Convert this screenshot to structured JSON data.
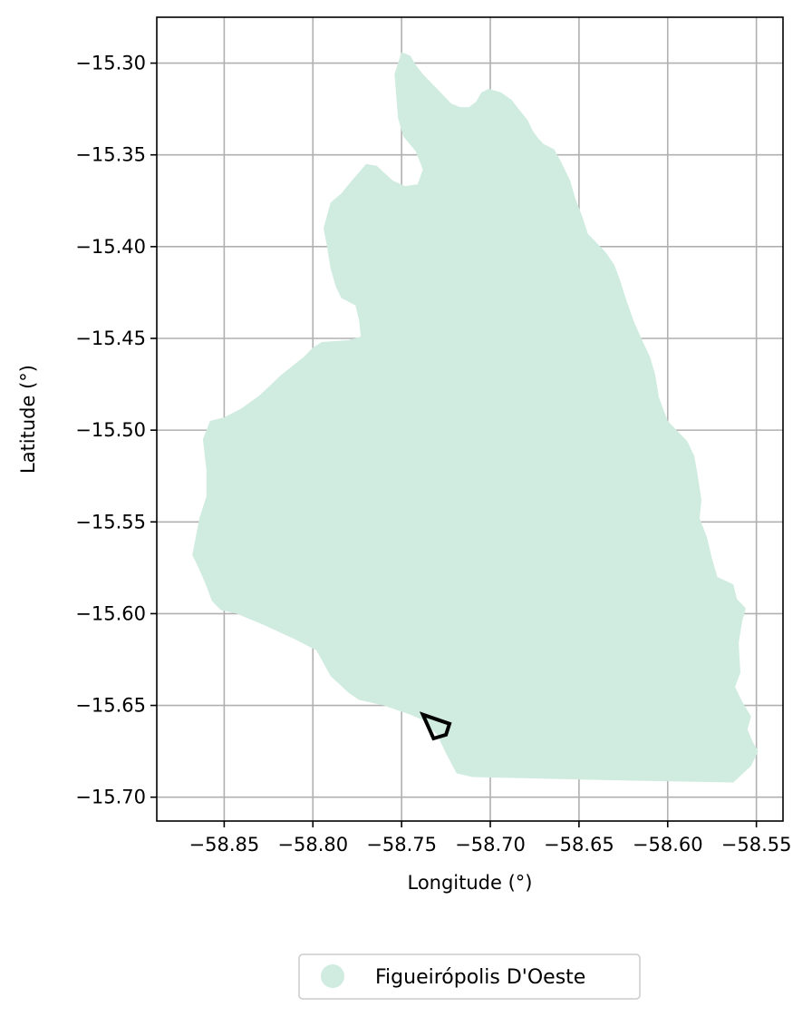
{
  "chart_data": {
    "type": "map",
    "xlabel": "Longitude (°)",
    "ylabel": "Latitude (°)",
    "xlim": [
      -58.888,
      -58.535
    ],
    "ylim": [
      -15.713,
      -15.275
    ],
    "grid": true,
    "xticks": [
      -58.85,
      -58.8,
      -58.75,
      -58.7,
      -58.65,
      -58.6,
      -58.55
    ],
    "xtick_labels": [
      "−58.85",
      "−58.80",
      "−58.75",
      "−58.70",
      "−58.65",
      "−58.60",
      "−58.55"
    ],
    "yticks": [
      -15.3,
      -15.35,
      -15.4,
      -15.45,
      -15.5,
      -15.55,
      -15.6,
      -15.65,
      -15.7
    ],
    "ytick_labels": [
      "−15.30",
      "−15.35",
      "−15.40",
      "−15.45",
      "−15.50",
      "−15.55",
      "−15.60",
      "−15.65",
      "−15.70"
    ],
    "legend": {
      "placement": "bottom-center",
      "entries": [
        "Figueirópolis D'Oeste"
      ]
    },
    "colors": {
      "region_fill": "#d0ece0",
      "outline": "#000000",
      "grid": "#b0b0b0"
    },
    "region": {
      "name": "Figueirópolis D'Oeste",
      "boundary": [
        [
          -58.75,
          -15.294
        ],
        [
          -58.745,
          -15.296
        ],
        [
          -58.742,
          -15.301
        ],
        [
          -58.738,
          -15.306
        ],
        [
          -58.73,
          -15.314
        ],
        [
          -58.726,
          -15.318
        ],
        [
          -58.722,
          -15.322
        ],
        [
          -58.717,
          -15.324
        ],
        [
          -58.712,
          -15.324
        ],
        [
          -58.708,
          -15.321
        ],
        [
          -58.705,
          -15.316
        ],
        [
          -58.701,
          -15.314
        ],
        [
          -58.694,
          -15.316
        ],
        [
          -58.688,
          -15.32
        ],
        [
          -58.684,
          -15.325
        ],
        [
          -58.679,
          -15.331
        ],
        [
          -58.676,
          -15.337
        ],
        [
          -58.673,
          -15.341
        ],
        [
          -58.67,
          -15.344
        ],
        [
          -58.664,
          -15.347
        ],
        [
          -58.66,
          -15.354
        ],
        [
          -58.655,
          -15.364
        ],
        [
          -58.652,
          -15.374
        ],
        [
          -58.648,
          -15.384
        ],
        [
          -58.645,
          -15.393
        ],
        [
          -58.64,
          -15.398
        ],
        [
          -58.635,
          -15.403
        ],
        [
          -58.63,
          -15.41
        ],
        [
          -58.627,
          -15.418
        ],
        [
          -58.623,
          -15.43
        ],
        [
          -58.619,
          -15.441
        ],
        [
          -58.614,
          -15.452
        ],
        [
          -58.61,
          -15.46
        ],
        [
          -58.607,
          -15.47
        ],
        [
          -58.605,
          -15.482
        ],
        [
          -58.6,
          -15.495
        ],
        [
          -58.593,
          -15.502
        ],
        [
          -58.589,
          -15.506
        ],
        [
          -58.585,
          -15.514
        ],
        [
          -58.583,
          -15.525
        ],
        [
          -58.581,
          -15.538
        ],
        [
          -58.582,
          -15.548
        ],
        [
          -58.578,
          -15.558
        ],
        [
          -58.575,
          -15.57
        ],
        [
          -58.572,
          -15.58
        ],
        [
          -58.563,
          -15.584
        ],
        [
          -58.561,
          -15.592
        ],
        [
          -58.556,
          -15.597
        ],
        [
          -58.558,
          -15.604
        ],
        [
          -58.56,
          -15.616
        ],
        [
          -58.559,
          -15.632
        ],
        [
          -58.562,
          -15.64
        ],
        [
          -58.558,
          -15.648
        ],
        [
          -58.553,
          -15.656
        ],
        [
          -58.555,
          -15.663
        ],
        [
          -58.552,
          -15.67
        ],
        [
          -58.549,
          -15.675
        ],
        [
          -58.553,
          -15.683
        ],
        [
          -58.563,
          -15.692
        ],
        [
          -58.62,
          -15.691
        ],
        [
          -58.665,
          -15.69
        ],
        [
          -58.71,
          -15.689
        ],
        [
          -58.719,
          -15.687
        ],
        [
          -58.725,
          -15.676
        ],
        [
          -58.73,
          -15.666
        ],
        [
          -58.738,
          -15.658
        ],
        [
          -58.745,
          -15.655
        ],
        [
          -58.76,
          -15.65
        ],
        [
          -58.774,
          -15.647
        ],
        [
          -58.78,
          -15.643
        ],
        [
          -58.79,
          -15.634
        ],
        [
          -58.798,
          -15.62
        ],
        [
          -58.81,
          -15.614
        ],
        [
          -58.828,
          -15.606
        ],
        [
          -58.843,
          -15.6
        ],
        [
          -58.852,
          -15.598
        ],
        [
          -58.857,
          -15.593
        ],
        [
          -58.86,
          -15.585
        ],
        [
          -58.864,
          -15.576
        ],
        [
          -58.868,
          -15.568
        ],
        [
          -58.866,
          -15.558
        ],
        [
          -58.864,
          -15.548
        ],
        [
          -58.86,
          -15.536
        ],
        [
          -58.86,
          -15.522
        ],
        [
          -58.862,
          -15.505
        ],
        [
          -58.858,
          -15.495
        ],
        [
          -58.85,
          -15.493
        ],
        [
          -58.84,
          -15.488
        ],
        [
          -58.83,
          -15.481
        ],
        [
          -58.818,
          -15.47
        ],
        [
          -58.805,
          -15.46
        ],
        [
          -58.8,
          -15.455
        ],
        [
          -58.795,
          -15.452
        ],
        [
          -58.78,
          -15.451
        ],
        [
          -58.773,
          -15.449
        ],
        [
          -58.774,
          -15.44
        ],
        [
          -58.776,
          -15.432
        ],
        [
          -58.784,
          -15.428
        ],
        [
          -58.787,
          -15.422
        ],
        [
          -58.79,
          -15.412
        ],
        [
          -58.792,
          -15.4
        ],
        [
          -58.794,
          -15.39
        ],
        [
          -58.79,
          -15.376
        ],
        [
          -58.784,
          -15.371
        ],
        [
          -58.778,
          -15.364
        ],
        [
          -58.77,
          -15.355
        ],
        [
          -58.764,
          -15.356
        ],
        [
          -58.755,
          -15.364
        ],
        [
          -58.748,
          -15.367
        ],
        [
          -58.741,
          -15.366
        ],
        [
          -58.738,
          -15.358
        ],
        [
          -58.742,
          -15.348
        ],
        [
          -58.749,
          -15.34
        ],
        [
          -58.752,
          -15.33
        ],
        [
          -58.753,
          -15.318
        ],
        [
          -58.754,
          -15.306
        ]
      ]
    },
    "outline": {
      "boundary": [
        [
          -58.738,
          -15.655
        ],
        [
          -58.723,
          -15.66
        ],
        [
          -58.725,
          -15.666
        ],
        [
          -58.732,
          -15.668
        ],
        [
          -58.738,
          -15.655
        ]
      ]
    }
  }
}
